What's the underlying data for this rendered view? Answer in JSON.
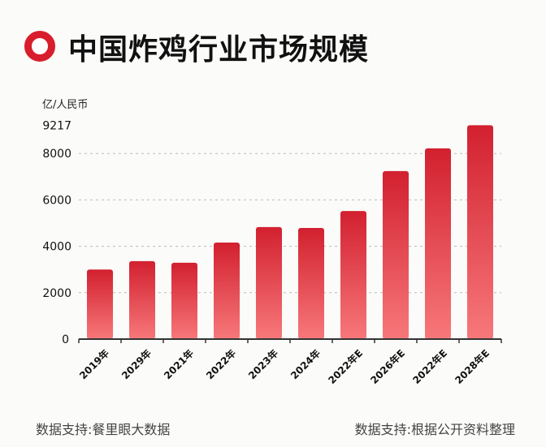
{
  "title": "中国炸鸡行业市场规模",
  "logo_icon": "red-ring",
  "source_left": "数据支持:餐里眼大数据",
  "source_right": "数据支持:根据公开资料整理",
  "colors": {
    "bar_top": "#d2202f",
    "bar_bottom": "#f7787a",
    "logo": "#d81e2c"
  },
  "chart_data": {
    "type": "bar",
    "ylabel": "亿/人民币",
    "categories": [
      "2019年",
      "2029年",
      "2021年",
      "2022年",
      "2023年",
      "2024年",
      "2022年E",
      "2026年E",
      "2022年E",
      "2028年E"
    ],
    "values": [
      3000,
      3360,
      3290,
      4160,
      4830,
      4790,
      5520,
      7240,
      8220,
      9217
    ],
    "yticks": [
      0,
      2000,
      4000,
      6000,
      8000,
      9217
    ],
    "ylim": [
      0,
      9217
    ],
    "grid": "dotted horizontal"
  }
}
